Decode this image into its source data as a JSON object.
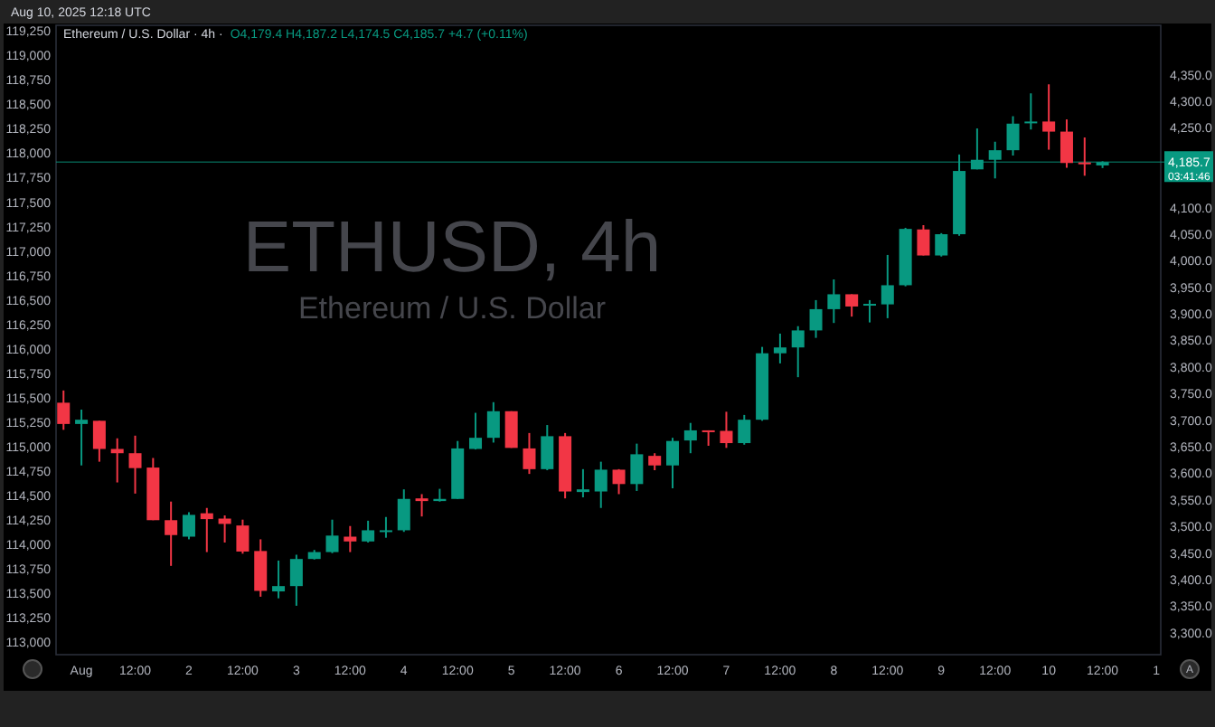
{
  "chart_data": {
    "type": "candlestick",
    "title": "ETHUSD, 4h",
    "subtitle": "Ethereum / U.S. Dollar",
    "annotations": [
      "Aug 10, 2025 12:18 UTC",
      "Ethereum / U.S. Dollar · 4h ·",
      "O4,179.4 H4,187.2 L4,174.5 C4,185.7 +4.7 (+0.11%)",
      "03:41:46",
      "A"
    ],
    "x": [
      "2025-07-31T20:00",
      "2025-08-01T00:00",
      "2025-08-01T04:00",
      "2025-08-01T08:00",
      "2025-08-01T12:00",
      "2025-08-01T16:00",
      "2025-08-01T20:00",
      "2025-08-02T00:00",
      "2025-08-02T04:00",
      "2025-08-02T08:00",
      "2025-08-02T12:00",
      "2025-08-02T16:00",
      "2025-08-02T20:00",
      "2025-08-03T00:00",
      "2025-08-03T04:00",
      "2025-08-03T08:00",
      "2025-08-03T12:00",
      "2025-08-03T16:00",
      "2025-08-03T20:00",
      "2025-08-04T00:00",
      "2025-08-04T04:00",
      "2025-08-04T08:00",
      "2025-08-04T12:00",
      "2025-08-04T16:00",
      "2025-08-04T20:00",
      "2025-08-05T00:00",
      "2025-08-05T04:00",
      "2025-08-05T08:00",
      "2025-08-05T12:00",
      "2025-08-05T16:00",
      "2025-08-05T20:00",
      "2025-08-06T00:00",
      "2025-08-06T04:00",
      "2025-08-06T08:00",
      "2025-08-06T12:00",
      "2025-08-06T16:00",
      "2025-08-06T20:00",
      "2025-08-07T00:00",
      "2025-08-07T04:00",
      "2025-08-07T08:00",
      "2025-08-07T12:00",
      "2025-08-07T16:00",
      "2025-08-07T20:00",
      "2025-08-08T00:00",
      "2025-08-08T04:00",
      "2025-08-08T08:00",
      "2025-08-08T12:00",
      "2025-08-08T16:00",
      "2025-08-08T20:00",
      "2025-08-09T00:00",
      "2025-08-09T04:00",
      "2025-08-09T08:00",
      "2025-08-09T12:00",
      "2025-08-09T16:00",
      "2025-08-09T20:00",
      "2025-08-10T00:00",
      "2025-08-10T04:00",
      "2025-08-10T08:00",
      "2025-08-10T12:00"
    ],
    "xlim": [
      "2025-07-31T18:20",
      "2025-08-11T01:00"
    ],
    "xticks": [
      {
        "value": "2025-08-01T00:00",
        "label": "Aug"
      },
      {
        "value": "2025-08-01T12:00",
        "label": "12:00"
      },
      {
        "value": "2025-08-02T00:00",
        "label": "2"
      },
      {
        "value": "2025-08-02T12:00",
        "label": "12:00"
      },
      {
        "value": "2025-08-03T00:00",
        "label": "3"
      },
      {
        "value": "2025-08-03T12:00",
        "label": "12:00"
      },
      {
        "value": "2025-08-04T00:00",
        "label": "4"
      },
      {
        "value": "2025-08-04T12:00",
        "label": "12:00"
      },
      {
        "value": "2025-08-05T00:00",
        "label": "5"
      },
      {
        "value": "2025-08-05T12:00",
        "label": "12:00"
      },
      {
        "value": "2025-08-06T00:00",
        "label": "6"
      },
      {
        "value": "2025-08-06T12:00",
        "label": "12:00"
      },
      {
        "value": "2025-08-07T00:00",
        "label": "7"
      },
      {
        "value": "2025-08-07T12:00",
        "label": "12:00"
      },
      {
        "value": "2025-08-08T00:00",
        "label": "8"
      },
      {
        "value": "2025-08-08T12:00",
        "label": "12:00"
      },
      {
        "value": "2025-08-09T00:00",
        "label": "9"
      },
      {
        "value": "2025-08-09T12:00",
        "label": "12:00"
      },
      {
        "value": "2025-08-10T00:00",
        "label": "10"
      },
      {
        "value": "2025-08-10T12:00",
        "label": "12:00"
      },
      {
        "value": "2025-08-11T00:00",
        "label": "1"
      }
    ],
    "ylim": [
      112870,
      119310
    ],
    "yticks": [
      {
        "value": 113000,
        "label": "113,000"
      },
      {
        "value": 113250,
        "label": "113,250"
      },
      {
        "value": 113500,
        "label": "113,500"
      },
      {
        "value": 113750,
        "label": "113,750"
      },
      {
        "value": 114000,
        "label": "114,000"
      },
      {
        "value": 114250,
        "label": "114,250"
      },
      {
        "value": 114500,
        "label": "114,500"
      },
      {
        "value": 114750,
        "label": "114,750"
      },
      {
        "value": 115000,
        "label": "115,000"
      },
      {
        "value": 115250,
        "label": "115,250"
      },
      {
        "value": 115500,
        "label": "115,500"
      },
      {
        "value": 115750,
        "label": "115,750"
      },
      {
        "value": 116000,
        "label": "116,000"
      },
      {
        "value": 116250,
        "label": "116,250"
      },
      {
        "value": 116500,
        "label": "116,500"
      },
      {
        "value": 116750,
        "label": "116,750"
      },
      {
        "value": 117000,
        "label": "117,000"
      },
      {
        "value": 117250,
        "label": "117,250"
      },
      {
        "value": 117500,
        "label": "117,500"
      },
      {
        "value": 117750,
        "label": "117,750"
      },
      {
        "value": 118000,
        "label": "118,000"
      },
      {
        "value": 118250,
        "label": "118,250"
      },
      {
        "value": 118500,
        "label": "118,500"
      },
      {
        "value": 118750,
        "label": "118,750"
      },
      {
        "value": 119000,
        "label": "119,000"
      },
      {
        "value": 119250,
        "label": "119,250"
      }
    ],
    "y2lim": [
      3259,
      4443
    ],
    "y2ticks": [
      {
        "value": 3300,
        "label": "3,300.0"
      },
      {
        "value": 3350,
        "label": "3,350.0"
      },
      {
        "value": 3400,
        "label": "3,400.0"
      },
      {
        "value": 3450,
        "label": "3,450.0"
      },
      {
        "value": 3500,
        "label": "3,500.0"
      },
      {
        "value": 3550,
        "label": "3,550.0"
      },
      {
        "value": 3600,
        "label": "3,600.0"
      },
      {
        "value": 3650,
        "label": "3,650.0"
      },
      {
        "value": 3700,
        "label": "3,700.0"
      },
      {
        "value": 3750,
        "label": "3,750.0"
      },
      {
        "value": 3800,
        "label": "3,800.0"
      },
      {
        "value": 3850,
        "label": "3,850.0"
      },
      {
        "value": 3900,
        "label": "3,900.0"
      },
      {
        "value": 3950,
        "label": "3,950.0"
      },
      {
        "value": 4000,
        "label": "4,000.0"
      },
      {
        "value": 4050,
        "label": "4,050.0"
      },
      {
        "value": 4100,
        "label": "4,100.0"
      },
      {
        "value": 4250,
        "label": "4,250.0"
      },
      {
        "value": 4300,
        "label": "4,300.0"
      },
      {
        "value": 4350,
        "label": "4,350.0"
      }
    ],
    "series": [
      {
        "axis": "y2",
        "colors": [
          "#f23645",
          "#089981",
          "#f23645",
          "#f23645",
          "#f23645",
          "#f23645",
          "#f23645",
          "#089981",
          "#f23645",
          "#f23645",
          "#f23645",
          "#f23645",
          "#089981",
          "#089981",
          "#089981",
          "#089981",
          "#f23645",
          "#089981",
          "#089981",
          "#089981",
          "#f23645",
          "#089981",
          "#089981",
          "#089981",
          "#089981",
          "#f23645",
          "#f23645",
          "#089981",
          "#f23645",
          "#089981",
          "#089981",
          "#f23645",
          "#089981",
          "#f23645",
          "#089981",
          "#089981",
          "#f23645",
          "#f23645",
          "#089981",
          "#089981",
          "#089981",
          "#089981",
          "#089981",
          "#089981",
          "#f23645",
          "#089981",
          "#089981",
          "#089981",
          "#f23645",
          "#089981",
          "#089981",
          "#089981",
          "#089981",
          "#089981",
          "#089981",
          "#f23645",
          "#f23645",
          "#f23645",
          "#089981"
        ],
        "ohlc": [
          [
            3733,
            3756,
            3682,
            3693
          ],
          [
            3693,
            3720,
            3615,
            3701
          ],
          [
            3699,
            3699,
            3622,
            3646
          ],
          [
            3646,
            3666,
            3583,
            3638
          ],
          [
            3638,
            3671,
            3562,
            3610
          ],
          [
            3611,
            3629,
            3512,
            3512
          ],
          [
            3512,
            3547,
            3426,
            3484
          ],
          [
            3481,
            3527,
            3476,
            3522
          ],
          [
            3525,
            3535,
            3452,
            3514
          ],
          [
            3515,
            3521,
            3470,
            3505
          ],
          [
            3502,
            3513,
            3449,
            3453
          ],
          [
            3454,
            3476,
            3368,
            3379
          ],
          [
            3378,
            3436,
            3365,
            3388
          ],
          [
            3388,
            3447,
            3351,
            3439
          ],
          [
            3439,
            3456,
            3438,
            3452
          ],
          [
            3452,
            3513,
            3450,
            3483
          ],
          [
            3481,
            3501,
            3452,
            3472
          ],
          [
            3472,
            3511,
            3470,
            3493
          ],
          [
            3490,
            3518,
            3479,
            3493
          ],
          [
            3493,
            3570,
            3490,
            3552
          ],
          [
            3553,
            3561,
            3519,
            3548
          ],
          [
            3548,
            3571,
            3547,
            3552
          ],
          [
            3552,
            3661,
            3552,
            3647
          ],
          [
            3646,
            3714,
            3645,
            3667
          ],
          [
            3667,
            3734,
            3658,
            3717
          ],
          [
            3717,
            3717,
            3648,
            3648
          ],
          [
            3647,
            3676,
            3599,
            3608
          ],
          [
            3608,
            3691,
            3606,
            3670
          ],
          [
            3670,
            3676,
            3553,
            3566
          ],
          [
            3565,
            3608,
            3555,
            3570
          ],
          [
            3566,
            3622,
            3535,
            3607
          ],
          [
            3607,
            3608,
            3561,
            3580
          ],
          [
            3580,
            3656,
            3567,
            3636
          ],
          [
            3633,
            3638,
            3606,
            3615
          ],
          [
            3615,
            3667,
            3572,
            3661
          ],
          [
            3662,
            3695,
            3638,
            3681
          ],
          [
            3681,
            3681,
            3652,
            3679
          ],
          [
            3680,
            3716,
            3648,
            3657
          ],
          [
            3657,
            3710,
            3654,
            3701
          ],
          [
            3701,
            3838,
            3699,
            3826
          ],
          [
            3826,
            3863,
            3807,
            3837
          ],
          [
            3837,
            3877,
            3781,
            3869
          ],
          [
            3869,
            3926,
            3855,
            3909
          ],
          [
            3909,
            3965,
            3883,
            3937
          ],
          [
            3937,
            3937,
            3895,
            3914
          ],
          [
            3917,
            3926,
            3884,
            3919
          ],
          [
            3918,
            4011,
            3892,
            3954
          ],
          [
            3954,
            4062,
            3952,
            4060
          ],
          [
            4059,
            4067,
            4010,
            4010
          ],
          [
            4010,
            4052,
            4008,
            4050
          ],
          [
            4050,
            4200,
            4047,
            4169
          ],
          [
            4172,
            4249,
            4172,
            4190
          ],
          [
            4190,
            4224,
            4155,
            4208
          ],
          [
            4208,
            4272,
            4198,
            4258
          ],
          [
            4259,
            4315,
            4247,
            4262
          ],
          [
            4262,
            4332,
            4209,
            4243
          ],
          [
            4243,
            4266,
            4175,
            4184
          ],
          [
            4185,
            4232,
            4160,
            4182
          ],
          [
            4179.4,
            4187.2,
            4174.5,
            4185.7
          ]
        ]
      }
    ],
    "ref_lines": [
      {
        "axis": "y2",
        "value": 4185.7,
        "label": "4,185.7",
        "color": "#089981"
      }
    ]
  }
}
